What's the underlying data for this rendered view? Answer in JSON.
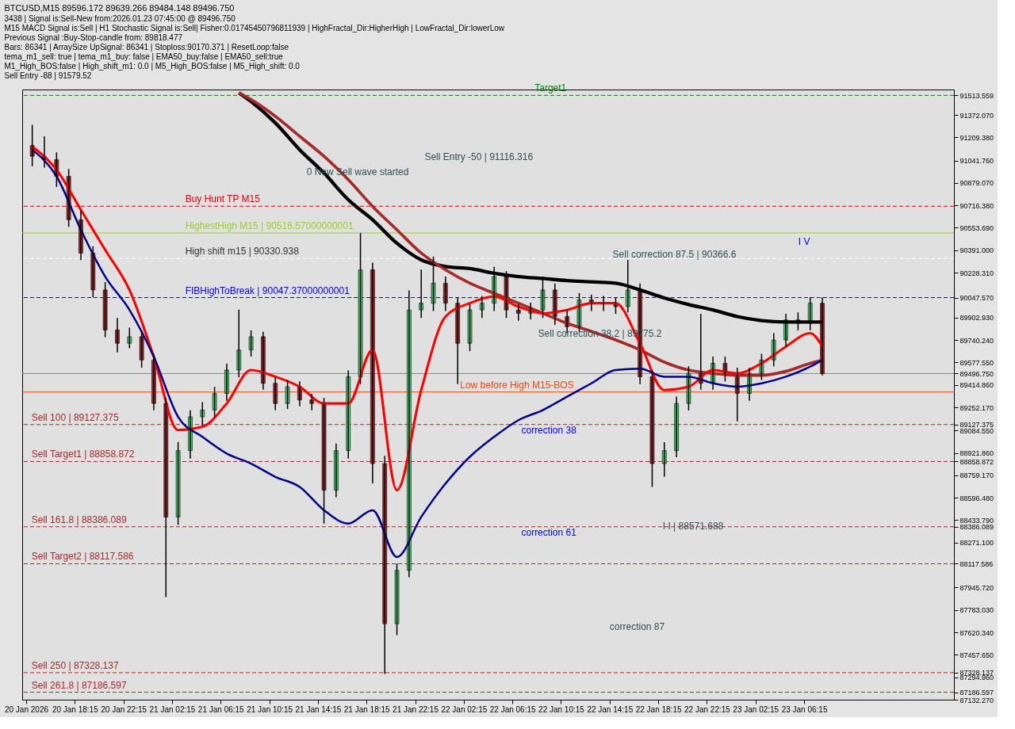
{
  "chart_data": {
    "type": "candlestick",
    "title": "BTCUSD,M15  89596.172 89639.266 89484.148 89496.750",
    "annotations": [
      "3438 | Signal is:Sell-New from:2026.01.23 07:45:00 @ 89496.750",
      "M15 MACD Signal is:Sell | H1 Stochastic Signal is:Sell| Fisher:0.01745450796811939 | HighFractal_Dir:HigherHigh | LowFractal_Dir:lowerLow",
      "Previous Signal :Buy-Stop-candle from: 89818.477",
      "Bars: 86341 | ArraySize UpSignal: 86341 | Stoploss:90170.371 | ResetLoop:false",
      "tema_m1_sell: true | tema_m1_buy: false | EMA50_buy:false | EMA50_sell:true",
      "M1_High_BOS:false | High_shift_m1: 0.0 | M5_High_BOS:false | M5_High_shift: 0.0",
      "Sell Entry -88 | 91579.52",
      "Sell Entry -50 | 91116.316",
      "0 New Sell wave started",
      "Sell correction 87.5 | 90366.6",
      "Sell correction 38.2 | 89775.2",
      "correction 87",
      "I I | 88571.688",
      {
        "text": "correction 38",
        "x": "2026-01-22T09:15",
        "y": 89127.375
      },
      {
        "text": "correction 61",
        "x": "2026-01-22T09:15",
        "y": 88386.089
      },
      {
        "text": "I V",
        "x": "2026-01-23T06:15",
        "y": 90491
      }
    ],
    "x": [
      "2026-01-20T14:45",
      "2026-01-20T15:45",
      "2026-01-20T16:45",
      "2026-01-20T17:45",
      "2026-01-20T18:45",
      "2026-01-20T19:45",
      "2026-01-20T20:45",
      "2026-01-20T21:45",
      "2026-01-20T22:45",
      "2026-01-20T23:45",
      "2026-01-21T00:45",
      "2026-01-21T01:45",
      "2026-01-21T02:45",
      "2026-01-21T03:45",
      "2026-01-21T04:45",
      "2026-01-21T05:45",
      "2026-01-21T06:45",
      "2026-01-21T07:45",
      "2026-01-21T08:45",
      "2026-01-21T09:45",
      "2026-01-21T10:45",
      "2026-01-21T11:45",
      "2026-01-21T12:45",
      "2026-01-21T13:45",
      "2026-01-21T14:45",
      "2026-01-21T15:45",
      "2026-01-21T16:45",
      "2026-01-21T17:45",
      "2026-01-21T18:45",
      "2026-01-21T19:45",
      "2026-01-21T20:45",
      "2026-01-21T21:45",
      "2026-01-21T22:45",
      "2026-01-21T23:45",
      "2026-01-22T00:45",
      "2026-01-22T01:45",
      "2026-01-22T02:45",
      "2026-01-22T03:45",
      "2026-01-22T04:45",
      "2026-01-22T05:45",
      "2026-01-22T06:45",
      "2026-01-22T07:45",
      "2026-01-22T08:45",
      "2026-01-22T09:45",
      "2026-01-22T10:45",
      "2026-01-22T11:45",
      "2026-01-22T12:45",
      "2026-01-22T13:45",
      "2026-01-22T14:45",
      "2026-01-22T15:45",
      "2026-01-22T16:45",
      "2026-01-22T17:45",
      "2026-01-22T18:45",
      "2026-01-22T19:45",
      "2026-01-22T20:45",
      "2026-01-22T21:45",
      "2026-01-22T22:45",
      "2026-01-22T23:45",
      "2026-01-23T00:45",
      "2026-01-23T01:45",
      "2026-01-23T02:45",
      "2026-01-23T03:45",
      "2026-01-23T04:45",
      "2026-01-23T05:45",
      "2026-01-23T06:45",
      "2026-01-23T07:45"
    ],
    "ohlc": [
      [
        91150,
        91300,
        91000,
        91072
      ],
      [
        91072,
        91217,
        90990,
        91048
      ],
      [
        91048,
        91100,
        90850,
        90927
      ],
      [
        90927,
        90980,
        90560,
        90612
      ],
      [
        90612,
        90680,
        90320,
        90370
      ],
      [
        90370,
        90420,
        90050,
        90103
      ],
      [
        90103,
        90160,
        89760,
        89813
      ],
      [
        89813,
        89900,
        89650,
        89716
      ],
      [
        89716,
        89830,
        89680,
        89764
      ],
      [
        89764,
        89800,
        89540,
        89595
      ],
      [
        89595,
        89640,
        89230,
        89280
      ],
      [
        89280,
        89320,
        87876,
        88457
      ],
      [
        88457,
        89000,
        88400,
        88938
      ],
      [
        88938,
        89230,
        88880,
        89183
      ],
      [
        89183,
        89290,
        89120,
        89232
      ],
      [
        89232,
        89400,
        89180,
        89353
      ],
      [
        89353,
        89570,
        89300,
        89522
      ],
      [
        89522,
        89960,
        89470,
        89668
      ],
      [
        89668,
        89810,
        89620,
        89764
      ],
      [
        89764,
        89800,
        89380,
        89426
      ],
      [
        89426,
        89470,
        89230,
        89280
      ],
      [
        89280,
        89450,
        89240,
        89401
      ],
      [
        89401,
        89440,
        89260,
        89305
      ],
      [
        89305,
        89350,
        89230,
        89280
      ],
      [
        89280,
        89320,
        88409,
        88651
      ],
      [
        88651,
        88990,
        88600,
        88938
      ],
      [
        88938,
        89520,
        88880,
        89474
      ],
      [
        89474,
        90515,
        89420,
        90249
      ],
      [
        90249,
        90300,
        88700,
        88844
      ],
      [
        88844,
        88900,
        87319,
        87683
      ],
      [
        87683,
        88120,
        87600,
        88070
      ],
      [
        88070,
        90100,
        88020,
        89958
      ],
      [
        89958,
        90250,
        89900,
        90007
      ],
      [
        90007,
        90345,
        89950,
        90152
      ],
      [
        90152,
        90200,
        89950,
        90007
      ],
      [
        90007,
        90050,
        89420,
        89716
      ],
      [
        89716,
        90000,
        89660,
        89958
      ],
      [
        89958,
        90060,
        89900,
        90007
      ],
      [
        90007,
        90270,
        89950,
        90200
      ],
      [
        90200,
        90240,
        89900,
        89958
      ],
      [
        89958,
        90000,
        89880,
        89934
      ],
      [
        89934,
        90010,
        89890,
        89958
      ],
      [
        89958,
        90200,
        89900,
        90103
      ],
      [
        90103,
        90150,
        89850,
        89910
      ],
      [
        89910,
        89960,
        89790,
        89837
      ],
      [
        89837,
        90080,
        89800,
        90031
      ],
      [
        90031,
        90070,
        89950,
        90007
      ],
      [
        90007,
        90060,
        89950,
        90007
      ],
      [
        90007,
        90050,
        89930,
        89982
      ],
      [
        89982,
        90321,
        89940,
        90103
      ],
      [
        90103,
        90150,
        89420,
        89474
      ],
      [
        89474,
        89520,
        88675,
        88844
      ],
      [
        88844,
        89000,
        88750,
        88938
      ],
      [
        88938,
        89330,
        88890,
        89280
      ],
      [
        89280,
        89550,
        89230,
        89498
      ],
      [
        89498,
        89930,
        89380,
        89426
      ],
      [
        89426,
        89620,
        89380,
        89571
      ],
      [
        89571,
        89620,
        89440,
        89498
      ],
      [
        89498,
        89540,
        89150,
        89353
      ],
      [
        89353,
        89540,
        89300,
        89498
      ],
      [
        89498,
        89640,
        89450,
        89595
      ],
      [
        89595,
        89790,
        89550,
        89740
      ],
      [
        89740,
        89930,
        89690,
        89886
      ],
      [
        89886,
        89940,
        89810,
        89862
      ],
      [
        89862,
        90050,
        89810,
        90007
      ],
      [
        90007,
        90050,
        89484.148,
        89496.75
      ]
    ],
    "series": [
      {
        "type": "line",
        "color": "#000000",
        "x": [
          "2026-01-21T07:45",
          "2026-01-21T08:45",
          "2026-01-21T10:45",
          "2026-01-21T12:45",
          "2026-01-21T14:45",
          "2026-01-21T16:45",
          "2026-01-21T18:45",
          "2026-01-21T20:45",
          "2026-01-21T22:45",
          "2026-01-22T00:45",
          "2026-01-22T02:45",
          "2026-01-22T04:45",
          "2026-01-22T06:45",
          "2026-01-22T08:45",
          "2026-01-22T10:45",
          "2026-01-22T12:45",
          "2026-01-22T14:45",
          "2026-01-22T16:45",
          "2026-01-22T18:45",
          "2026-01-22T20:45",
          "2026-01-22T22:45",
          "2026-01-23T00:45",
          "2026-01-23T02:45",
          "2026-01-23T04:45",
          "2026-01-23T06:45",
          "2026-01-23T07:45"
        ],
        "values": [
          91532,
          91469,
          91314,
          91120,
          90951,
          90757,
          90612,
          90442,
          90321,
          90273,
          90258,
          90224,
          90200,
          90186,
          90171,
          90162,
          90152,
          90103,
          90045,
          89997,
          89958,
          89910,
          89881,
          89871,
          89871,
          89871
        ]
      },
      {
        "type": "line",
        "color": "#a52a2a",
        "x": [
          "2026-01-21T07:45",
          "2026-01-21T08:45",
          "2026-01-21T10:45",
          "2026-01-21T12:45",
          "2026-01-21T14:45",
          "2026-01-21T16:45",
          "2026-01-21T18:45",
          "2026-01-21T20:45",
          "2026-01-21T22:45",
          "2026-01-22T00:45",
          "2026-01-22T02:45",
          "2026-01-22T04:45",
          "2026-01-22T06:45",
          "2026-01-22T08:45",
          "2026-01-22T10:45",
          "2026-01-22T12:45",
          "2026-01-22T14:45",
          "2026-01-22T16:45",
          "2026-01-22T18:45",
          "2026-01-22T20:45",
          "2026-01-22T22:45",
          "2026-01-23T00:45",
          "2026-01-23T02:45",
          "2026-01-23T04:45",
          "2026-01-23T06:45",
          "2026-01-23T07:45"
        ],
        "values": [
          91532,
          91483,
          91362,
          91217,
          91072,
          90902,
          90709,
          90539,
          90370,
          90249,
          90152,
          90079,
          90007,
          89934,
          89861,
          89803,
          89740,
          89668,
          89580,
          89522,
          89498,
          89484,
          89484,
          89513,
          89571,
          89595
        ]
      },
      {
        "type": "line",
        "color": "#ff0000",
        "x": [
          "2026-01-20T14:45",
          "2026-01-20T16:45",
          "2026-01-20T18:45",
          "2026-01-20T20:45",
          "2026-01-20T22:45",
          "2026-01-21T00:45",
          "2026-01-21T02:45",
          "2026-01-21T04:45",
          "2026-01-21T06:45",
          "2026-01-21T08:45",
          "2026-01-21T10:45",
          "2026-01-21T12:45",
          "2026-01-21T14:45",
          "2026-01-21T16:45",
          "2026-01-21T18:45",
          "2026-01-21T20:45",
          "2026-01-21T22:45",
          "2026-01-22T00:45",
          "2026-01-22T02:45",
          "2026-01-22T04:45",
          "2026-01-22T06:45",
          "2026-01-22T08:45",
          "2026-01-22T10:45",
          "2026-01-22T12:45",
          "2026-01-22T14:45",
          "2026-01-22T16:45",
          "2026-01-22T18:45",
          "2026-01-22T20:45",
          "2026-01-22T22:45",
          "2026-01-23T00:45",
          "2026-01-23T02:45",
          "2026-01-23T04:45",
          "2026-01-23T06:45",
          "2026-01-23T07:45"
        ],
        "values": [
          91144,
          90975,
          90684,
          90394,
          90103,
          89619,
          89087,
          89111,
          89280,
          89522,
          89474,
          89401,
          89280,
          89280,
          89668,
          88651,
          89377,
          89910,
          90007,
          90055,
          89982,
          89934,
          89958,
          90007,
          90007,
          89716,
          89377,
          89401,
          89522,
          89498,
          89571,
          89692,
          89789,
          89692
        ]
      },
      {
        "type": "line",
        "color": "#00008b",
        "x": [
          "2026-01-20T14:45",
          "2026-01-20T16:45",
          "2026-01-20T18:45",
          "2026-01-20T20:45",
          "2026-01-20T22:45",
          "2026-01-21T00:45",
          "2026-01-21T02:45",
          "2026-01-21T04:45",
          "2026-01-21T06:45",
          "2026-01-21T08:45",
          "2026-01-21T10:45",
          "2026-01-21T12:45",
          "2026-01-21T14:45",
          "2026-01-21T16:45",
          "2026-01-21T18:45",
          "2026-01-21T20:45",
          "2026-01-21T22:45",
          "2026-01-22T00:45",
          "2026-01-22T02:45",
          "2026-01-22T04:45",
          "2026-01-22T06:45",
          "2026-01-22T08:45",
          "2026-01-22T10:45",
          "2026-01-22T12:45",
          "2026-01-22T14:45",
          "2026-01-22T16:45",
          "2026-01-22T18:45",
          "2026-01-22T20:45",
          "2026-01-22T22:45",
          "2026-01-23T00:45",
          "2026-01-23T02:45",
          "2026-01-23T04:45",
          "2026-01-23T06:45",
          "2026-01-23T07:45"
        ],
        "values": [
          91120,
          90927,
          90539,
          90200,
          89958,
          89619,
          89183,
          89038,
          88917,
          88844,
          88748,
          88675,
          88506,
          88409,
          88506,
          88167,
          88457,
          88699,
          88893,
          89038,
          89159,
          89232,
          89329,
          89426,
          89522,
          89532,
          89474,
          89474,
          89426,
          89401,
          89426,
          89474,
          89547,
          89595
        ]
      }
    ],
    "ref_lines": [
      {
        "axis": "y",
        "value": 91513.559,
        "label": "Target1",
        "color": "#008000",
        "line_style": "dashed"
      },
      {
        "axis": "y",
        "value": 90710,
        "label": "Buy Hunt TP M15",
        "color": "#e00000",
        "line_style": "dashed"
      },
      {
        "axis": "y",
        "value": 90516.57,
        "label": "HighestHigh   M15 | 90516.57000000001",
        "color": "#9acd32",
        "line_style": "solid"
      },
      {
        "axis": "y",
        "value": 90330.938,
        "label": "High shift m15 | 90330.938",
        "color": "#ffffff",
        "line_style": "dashed"
      },
      {
        "axis": "y",
        "value": 90047.57,
        "label": "FIBHighToBreak | 90047.37000000001",
        "color": "#0000ff",
        "line_style": "dashed"
      },
      {
        "axis": "y",
        "value": 89496.75,
        "color": "#8a8a8a",
        "line_style": "solid"
      },
      {
        "axis": "y",
        "value": 89363,
        "label": "Low before High   M15-BOS",
        "color": "#ff4500",
        "line_style": "solid"
      },
      {
        "axis": "y",
        "value": 89127.375,
        "label": "Sell 100 | 89127.375",
        "color": "#a52a2a",
        "line_style": "dashed"
      },
      {
        "axis": "y",
        "value": 88858.872,
        "label": "Sell Target1 | 88858.872",
        "color": "#a52a2a",
        "line_style": "dashed"
      },
      {
        "axis": "y",
        "value": 88386.089,
        "label": "Sell 161.8 | 88386.089",
        "color": "#a52a2a",
        "line_style": "dashed"
      },
      {
        "axis": "y",
        "value": 88117.586,
        "label": "Sell Target2 | 88117.586",
        "color": "#a52a2a",
        "line_style": "dashed"
      },
      {
        "axis": "y",
        "value": 87328.137,
        "label": "Sell  250 | 87328.137",
        "color": "#a52a2a",
        "line_style": "dashed"
      },
      {
        "axis": "y",
        "value": 87186.597,
        "label": "Sell  261.8 | 87186.597",
        "color": "#a52a2a",
        "line_style": "dashed"
      }
    ],
    "xlim": [
      "2026-01-20T14:15",
      "2026-01-23T18:15"
    ],
    "xticks": [
      {
        "value": "2026-01-20T14:15",
        "label": "20 Jan 2026"
      },
      {
        "value": "2026-01-20T18:15",
        "label": "20 Jan 18:15"
      },
      {
        "value": "2026-01-20T22:15",
        "label": "20 Jan 22:15"
      },
      {
        "value": "2026-01-21T02:15",
        "label": "21 Jan 02:15"
      },
      {
        "value": "2026-01-21T06:15",
        "label": "21 Jan 06:15"
      },
      {
        "value": "2026-01-21T10:15",
        "label": "21 Jan 10:15"
      },
      {
        "value": "2026-01-21T14:15",
        "label": "21 Jan 14:15"
      },
      {
        "value": "2026-01-21T18:15",
        "label": "21 Jan 18:15"
      },
      {
        "value": "2026-01-21T22:15",
        "label": "21 Jan 22:15"
      },
      {
        "value": "2026-01-22T02:15",
        "label": "22 Jan 02:15"
      },
      {
        "value": "2026-01-22T06:15",
        "label": "22 Jan 06:15"
      },
      {
        "value": "2026-01-22T10:15",
        "label": "22 Jan 10:15"
      },
      {
        "value": "2026-01-22T14:15",
        "label": "22 Jan 14:15"
      },
      {
        "value": "2026-01-22T18:15",
        "label": "22 Jan 18:15"
      },
      {
        "value": "2026-01-22T22:15",
        "label": "22 Jan 22:15"
      },
      {
        "value": "2026-01-23T02:15",
        "label": "23 Jan 02:15"
      },
      {
        "value": "2026-01-23T06:15",
        "label": "23 Jan 06:15"
      }
    ],
    "ylim": [
      87132.27,
      91556
    ],
    "yticks": [
      {
        "value": 91513.559,
        "label": "91513.559"
      },
      {
        "value": 91372.07,
        "label": "91372.070"
      },
      {
        "value": 91209.38,
        "label": "91209.380"
      },
      {
        "value": 91041.76,
        "label": "91041.760"
      },
      {
        "value": 90879.07,
        "label": "90879.070"
      },
      {
        "value": 90716.38,
        "label": "90716.380"
      },
      {
        "value": 90553.69,
        "label": "90553.690"
      },
      {
        "value": 90391.0,
        "label": "90391.000"
      },
      {
        "value": 90228.31,
        "label": "90228.310"
      },
      {
        "value": 90047.57,
        "label": "90047.570"
      },
      {
        "value": 89902.93,
        "label": "89902.930"
      },
      {
        "value": 89740.24,
        "label": "89740.240"
      },
      {
        "value": 89577.55,
        "label": "89577.550"
      },
      {
        "value": 89496.75,
        "label": "89496.750"
      },
      {
        "value": 89414.86,
        "label": "89414.860"
      },
      {
        "value": 89252.17,
        "label": "89252.170"
      },
      {
        "value": 89127.375,
        "label": "89127.375"
      },
      {
        "value": 89084.55,
        "label": "89084.550"
      },
      {
        "value": 88921.86,
        "label": "88921.860"
      },
      {
        "value": 88858.872,
        "label": "88858.872"
      },
      {
        "value": 88759.17,
        "label": "88759.170"
      },
      {
        "value": 88596.48,
        "label": "88596.480"
      },
      {
        "value": 88433.79,
        "label": "88433.790"
      },
      {
        "value": 88386.089,
        "label": "88386.089"
      },
      {
        "value": 88271.1,
        "label": "88271.100"
      },
      {
        "value": 88117.586,
        "label": "88117.586"
      },
      {
        "value": 87945.72,
        "label": "87945.720"
      },
      {
        "value": 87783.03,
        "label": "87783.030"
      },
      {
        "value": 87620.34,
        "label": "87620.340"
      },
      {
        "value": 87457.65,
        "label": "87457.650"
      },
      {
        "value": 87328.137,
        "label": "87328.137"
      },
      {
        "value": 87294.96,
        "label": "87294.960"
      },
      {
        "value": 87186.597,
        "label": "87186.597"
      },
      {
        "value": 87132.27,
        "label": "87132.270"
      }
    ],
    "grid": false
  }
}
